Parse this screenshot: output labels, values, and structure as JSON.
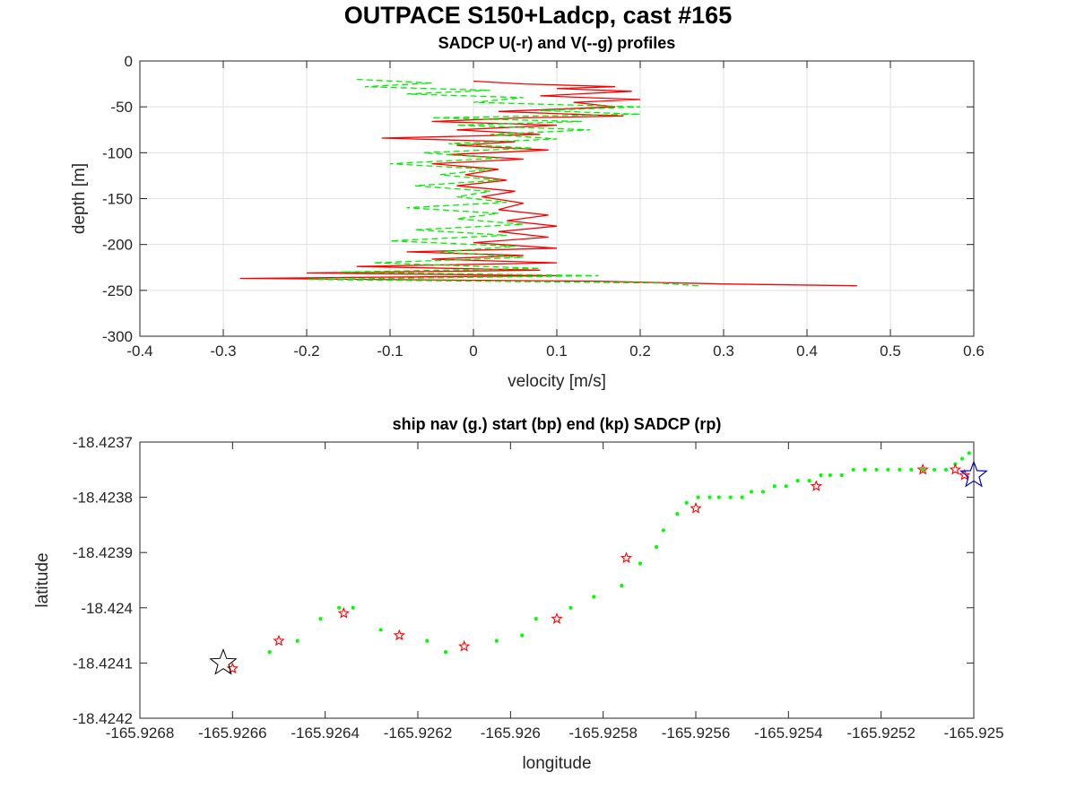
{
  "figure_title": "OUTPACE S150+Ladcp, cast #165",
  "chart_data": [
    {
      "type": "line",
      "title": "SADCP U(-r) and V(--g) profiles",
      "xlabel": "velocity [m/s]",
      "ylabel": "depth [m]",
      "xlim": [
        -0.4,
        0.6
      ],
      "ylim": [
        -300,
        0
      ],
      "xticks": [
        -0.4,
        -0.3,
        -0.2,
        -0.1,
        0,
        0.1,
        0.2,
        0.3,
        0.4,
        0.5,
        0.6
      ],
      "yticks": [
        0,
        -50,
        -100,
        -150,
        -200,
        -250,
        -300
      ],
      "xtick_labels": [
        "-0.4",
        "-0.3",
        "-0.2",
        "-0.1",
        "0",
        "0.1",
        "0.2",
        "0.3",
        "0.4",
        "0.5",
        "0.6"
      ],
      "ytick_labels": [
        "0",
        "-50",
        "-100",
        "-150",
        "-200",
        "-250",
        "-300"
      ],
      "grid": true,
      "series": [
        {
          "label": "U",
          "color": "#ff0000",
          "style": "solid",
          "depth": [
            -22,
            -25,
            -28,
            -30,
            -33,
            -38,
            -42,
            -45,
            -50,
            -55,
            -60,
            -62,
            -66,
            -70,
            -75,
            -80,
            -84,
            -88,
            -92,
            -97,
            -102,
            -107,
            -112,
            -118,
            -124,
            -130,
            -136,
            -142,
            -148,
            -155,
            -162,
            -168,
            -174,
            -180,
            -186,
            -192,
            -198,
            -204,
            -208,
            -212,
            -216,
            -220,
            -224,
            -228,
            -231,
            -234,
            -237,
            -240,
            -243,
            -245
          ],
          "u": [
            0.0,
            0.06,
            0.17,
            0.1,
            0.19,
            0.08,
            0.2,
            0.12,
            0.17,
            0.03,
            0.18,
            0.06,
            -0.05,
            0.1,
            -0.02,
            0.08,
            -0.11,
            0.05,
            -0.02,
            0.09,
            -0.03,
            0.06,
            -0.05,
            0.03,
            -0.01,
            0.04,
            -0.02,
            0.05,
            0.01,
            0.06,
            0.03,
            0.09,
            0.04,
            0.1,
            0.03,
            0.09,
            0.0,
            0.1,
            -0.08,
            0.06,
            -0.05,
            0.1,
            -0.14,
            0.08,
            -0.2,
            0.1,
            -0.28,
            0.15,
            0.3,
            0.46
          ]
        },
        {
          "label": "V",
          "color": "#00ee00",
          "style": "dashed",
          "depth": [
            -20,
            -24,
            -28,
            -32,
            -36,
            -40,
            -45,
            -50,
            -54,
            -58,
            -62,
            -66,
            -70,
            -75,
            -80,
            -85,
            -90,
            -95,
            -100,
            -106,
            -112,
            -118,
            -124,
            -130,
            -136,
            -142,
            -148,
            -154,
            -160,
            -166,
            -172,
            -178,
            -184,
            -190,
            -196,
            -202,
            -208,
            -214,
            -220,
            -226,
            -230,
            -234,
            -238,
            -242,
            -245
          ],
          "v": [
            -0.14,
            -0.05,
            -0.13,
            0.02,
            -0.08,
            0.06,
            0.0,
            0.2,
            0.08,
            0.2,
            -0.05,
            0.13,
            -0.02,
            0.14,
            0.02,
            0.1,
            -0.03,
            0.07,
            -0.06,
            0.03,
            -0.1,
            0.02,
            -0.04,
            0.03,
            -0.07,
            0.02,
            -0.02,
            0.04,
            -0.08,
            0.03,
            -0.02,
            0.06,
            -0.07,
            0.04,
            -0.1,
            0.05,
            -0.04,
            0.06,
            -0.12,
            0.08,
            -0.16,
            0.15,
            -0.2,
            0.22,
            0.27
          ]
        }
      ]
    },
    {
      "type": "scatter",
      "title": "ship nav (g.) start (bp) end (kp) SADCP (rp)",
      "xlabel": "longitude",
      "ylabel": "latitude",
      "xlim": [
        -165.9268,
        -165.925
      ],
      "ylim": [
        -18.4242,
        -18.4237
      ],
      "xticks": [
        -165.9268,
        -165.9266,
        -165.9264,
        -165.9262,
        -165.926,
        -165.9258,
        -165.9256,
        -165.9254,
        -165.9252,
        -165.925
      ],
      "yticks": [
        -18.4237,
        -18.4238,
        -18.4239,
        -18.424,
        -18.4241,
        -18.4242
      ],
      "xtick_labels": [
        "-165.9268",
        "-165.9266",
        "-165.9264",
        "-165.9262",
        "-165.926",
        "-165.9258",
        "-165.9256",
        "-165.9254",
        "-165.9252",
        "-165.925"
      ],
      "ytick_labels": [
        "-18.4237",
        "-18.4238",
        "-18.4239",
        "-18.424",
        "-18.4241",
        "-18.4242"
      ],
      "grid": false,
      "ship_nav": {
        "color": "#00ff00",
        "lon": [
          -165.92652,
          -165.92646,
          -165.92641,
          -165.92637,
          -165.92634,
          -165.92628,
          -165.92618,
          -165.92614,
          -165.92603,
          -165.925975,
          -165.925945,
          -165.92587,
          -165.92582,
          -165.92576,
          -165.92572,
          -165.925685,
          -165.92567,
          -165.92564,
          -165.92562,
          -165.925595,
          -165.92557,
          -165.92555,
          -165.925525,
          -165.9255,
          -165.92548,
          -165.925455,
          -165.92543,
          -165.925405,
          -165.92538,
          -165.925355,
          -165.92533,
          -165.92531,
          -165.925285,
          -165.92526,
          -165.925235,
          -165.92521,
          -165.925185,
          -165.92516,
          -165.925135,
          -165.92511,
          -165.925085,
          -165.92506,
          -165.92504,
          -165.925025,
          -165.92501
        ],
        "lat": [
          -18.42408,
          -18.42406,
          -18.42402,
          -18.424,
          -18.424,
          -18.42404,
          -18.42406,
          -18.42408,
          -18.42406,
          -18.42405,
          -18.42402,
          -18.424,
          -18.42398,
          -18.42396,
          -18.42392,
          -18.42389,
          -18.42386,
          -18.42383,
          -18.42381,
          -18.4238,
          -18.4238,
          -18.4238,
          -18.4238,
          -18.4238,
          -18.42379,
          -18.42379,
          -18.42378,
          -18.42378,
          -18.42377,
          -18.42377,
          -18.42376,
          -18.42376,
          -18.42376,
          -18.42375,
          -18.42375,
          -18.42375,
          -18.42375,
          -18.42375,
          -18.42375,
          -18.42375,
          -18.42375,
          -18.42375,
          -18.42374,
          -18.42373,
          -18.42372
        ]
      },
      "sadcp_points": {
        "color": "#ff0000",
        "lon": [
          -165.9266,
          -165.9265,
          -165.92636,
          -165.92624,
          -165.9261,
          -165.9259,
          -165.92575,
          -165.9256,
          -165.92534,
          -165.92511,
          -165.92504,
          -165.92502
        ],
        "lat": [
          -18.42411,
          -18.42406,
          -18.42401,
          -18.42405,
          -18.42407,
          -18.42402,
          -18.42391,
          -18.42382,
          -18.42378,
          -18.42375,
          -18.42375,
          -18.42376
        ]
      },
      "start": {
        "color": "#000000",
        "lon": -165.92662,
        "lat": -18.4241
      },
      "end": {
        "color": "#0000cc",
        "lon": -165.925,
        "lat": -18.42376
      }
    }
  ]
}
